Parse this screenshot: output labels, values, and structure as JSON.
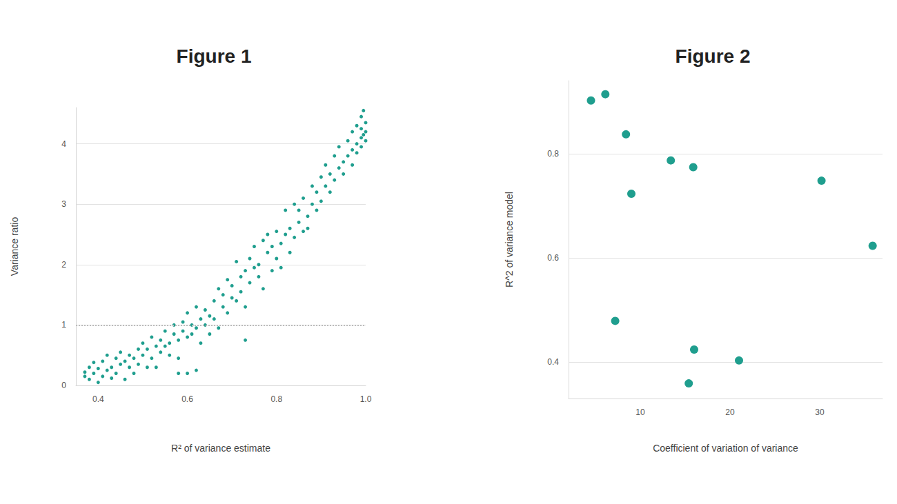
{
  "chart_data": [
    {
      "type": "scatter",
      "title": "Figure 1",
      "x_label": "R² of variance estimate",
      "y_label": "Variance ratio",
      "x": [
        0.37,
        0.37,
        0.38,
        0.38,
        0.39,
        0.39,
        0.4,
        0.4,
        0.41,
        0.41,
        0.42,
        0.42,
        0.43,
        0.43,
        0.44,
        0.44,
        0.45,
        0.45,
        0.46,
        0.46,
        0.47,
        0.47,
        0.48,
        0.48,
        0.49,
        0.49,
        0.5,
        0.5,
        0.51,
        0.51,
        0.52,
        0.52,
        0.53,
        0.53,
        0.54,
        0.54,
        0.55,
        0.55,
        0.56,
        0.56,
        0.57,
        0.57,
        0.58,
        0.58,
        0.58,
        0.59,
        0.59,
        0.6,
        0.6,
        0.6,
        0.61,
        0.61,
        0.62,
        0.62,
        0.62,
        0.63,
        0.63,
        0.64,
        0.64,
        0.65,
        0.65,
        0.66,
        0.66,
        0.67,
        0.67,
        0.68,
        0.68,
        0.69,
        0.69,
        0.7,
        0.7,
        0.71,
        0.71,
        0.72,
        0.72,
        0.73,
        0.73,
        0.73,
        0.74,
        0.74,
        0.75,
        0.75,
        0.76,
        0.76,
        0.77,
        0.77,
        0.78,
        0.78,
        0.79,
        0.79,
        0.8,
        0.8,
        0.81,
        0.81,
        0.82,
        0.82,
        0.83,
        0.83,
        0.84,
        0.84,
        0.85,
        0.85,
        0.86,
        0.86,
        0.87,
        0.87,
        0.88,
        0.88,
        0.89,
        0.89,
        0.9,
        0.9,
        0.91,
        0.91,
        0.92,
        0.92,
        0.93,
        0.93,
        0.94,
        0.94,
        0.95,
        0.95,
        0.96,
        0.96,
        0.97,
        0.97,
        0.97,
        0.98,
        0.98,
        0.98,
        0.99,
        0.99,
        0.99,
        0.99,
        1.0,
        1.0,
        1.0,
        0.995,
        0.995
      ],
      "values": [
        0.22,
        0.15,
        0.3,
        0.1,
        0.2,
        0.38,
        0.05,
        0.28,
        0.15,
        0.4,
        0.25,
        0.5,
        0.3,
        0.12,
        0.45,
        0.2,
        0.35,
        0.55,
        0.1,
        0.4,
        0.3,
        0.5,
        0.45,
        0.2,
        0.6,
        0.35,
        0.5,
        0.7,
        0.3,
        0.6,
        0.8,
        0.45,
        0.65,
        0.3,
        0.75,
        0.55,
        0.9,
        0.65,
        0.7,
        0.5,
        0.85,
        1.0,
        0.75,
        0.2,
        0.45,
        1.05,
        0.9,
        0.2,
        1.2,
        0.8,
        1.0,
        0.85,
        0.25,
        1.3,
        0.95,
        1.1,
        0.7,
        1.0,
        1.25,
        0.85,
        1.15,
        1.1,
        1.4,
        0.95,
        1.6,
        1.3,
        1.5,
        1.75,
        1.2,
        1.45,
        1.65,
        2.05,
        1.4,
        1.8,
        1.55,
        0.75,
        1.9,
        1.3,
        2.1,
        1.7,
        1.95,
        2.3,
        1.8,
        2.0,
        2.4,
        1.6,
        2.2,
        2.5,
        1.9,
        2.3,
        2.55,
        2.1,
        2.35,
        1.95,
        2.9,
        2.5,
        2.6,
        2.2,
        3.0,
        2.45,
        2.7,
        2.9,
        2.55,
        3.1,
        2.8,
        2.6,
        3.0,
        3.3,
        2.9,
        3.2,
        3.45,
        3.05,
        3.3,
        3.65,
        3.2,
        3.5,
        3.8,
        3.4,
        3.6,
        3.95,
        3.7,
        3.5,
        4.05,
        3.8,
        3.9,
        4.2,
        3.65,
        4.3,
        4.0,
        3.85,
        4.45,
        4.1,
        4.25,
        3.95,
        4.2,
        4.35,
        4.05,
        4.55,
        4.15
      ],
      "color": "#1f9e8e",
      "marker": "circle",
      "xlim": [
        0.35,
        1.0
      ],
      "xticks": [
        0.4,
        0.6,
        0.8,
        {
          "value": 1,
          "label": "1.0"
        }
      ],
      "ylim": [
        0,
        4.6
      ],
      "yticks": [
        0,
        1,
        2,
        3,
        4
      ],
      "grid": true,
      "hlines": [
        1
      ]
    },
    {
      "type": "scatter",
      "title": "Figure 2",
      "x_label": "Coefficient of variation of variance",
      "y_label": "R^2 of variance model",
      "x": [
        4.5,
        6.1,
        8.4,
        9.0,
        7.2,
        13.4,
        15.9,
        15.4,
        16.0,
        21.0,
        30.2,
        35.9
      ],
      "values": [
        0.902,
        0.914,
        0.837,
        0.723,
        0.479,
        0.787,
        0.774,
        0.359,
        0.424,
        0.403,
        0.748,
        0.623
      ],
      "color": "#1f9e8e",
      "marker": "circle",
      "xlim": [
        2,
        37
      ],
      "xticks": [
        10,
        20,
        30
      ],
      "ylim": [
        0.33,
        0.94
      ],
      "yticks": [
        0.4,
        0.6,
        0.8
      ],
      "grid": true
    }
  ]
}
